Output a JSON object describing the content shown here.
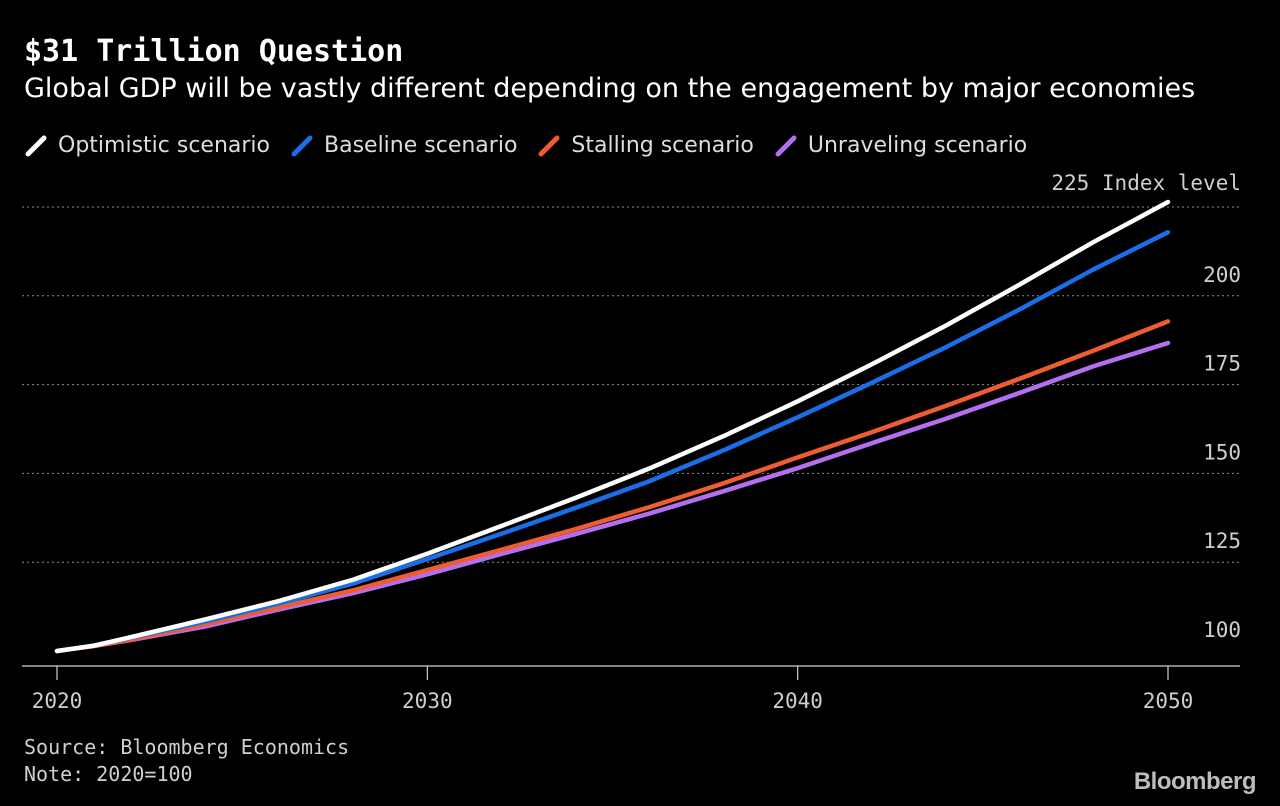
{
  "header": {
    "title": "$31 Trillion Question",
    "subtitle": "Global GDP will be vastly different depending on the engagement by major economies"
  },
  "footer": {
    "source": "Source: Bloomberg Economics",
    "note": "Note: 2020=100",
    "brand": "Bloomberg"
  },
  "chart_data": {
    "type": "line",
    "title": "$31 Trillion Question",
    "subtitle": "Global GDP will be vastly different depending on the engagement by major economies",
    "ylabel": "225 Index level",
    "xlim": [
      2020,
      2052
    ],
    "ylim": [
      93,
      225
    ],
    "x_ticks": [
      2020,
      2030,
      2040,
      2050
    ],
    "y_ticks": [
      100,
      125,
      150,
      175,
      200,
      225
    ],
    "y_tick_labels": [
      "100",
      "125",
      "150",
      "175",
      "200",
      "225 Index level"
    ],
    "grid": "horizontal dotted",
    "legend_position": "top-left",
    "x": [
      2020,
      2021,
      2022,
      2024,
      2026,
      2028,
      2030,
      2032,
      2034,
      2036,
      2038,
      2040,
      2042,
      2044,
      2046,
      2048,
      2050
    ],
    "series": [
      {
        "name": "Optimistic scenario",
        "color": "#ffffff",
        "values": [
          100,
          101.5,
          103.9,
          108.9,
          114.1,
          120.1,
          127.4,
          135.2,
          143.1,
          151.4,
          160.5,
          170.3,
          180.7,
          191.6,
          203.2,
          215.2,
          226.4
        ]
      },
      {
        "name": "Baseline scenario",
        "color": "#1a6fe8",
        "values": [
          100,
          101.6,
          103.8,
          108.3,
          113.4,
          119.0,
          125.9,
          133.0,
          140.3,
          147.8,
          156.5,
          165.8,
          175.5,
          185.5,
          196.2,
          207.5,
          217.9
        ]
      },
      {
        "name": "Stalling scenario",
        "color": "#ee5c32",
        "values": [
          100,
          101.4,
          103.2,
          107.5,
          112.3,
          117.1,
          122.8,
          128.5,
          134.3,
          140.5,
          147.2,
          154.5,
          161.6,
          169.0,
          176.7,
          184.6,
          192.8
        ]
      },
      {
        "name": "Unraveling scenario",
        "color": "#b46ef0",
        "values": [
          100,
          101.4,
          103.1,
          106.9,
          111.7,
          116.3,
          121.6,
          127.3,
          132.9,
          138.7,
          145.0,
          151.5,
          158.5,
          165.4,
          172.7,
          180.2,
          186.7
        ]
      }
    ]
  }
}
